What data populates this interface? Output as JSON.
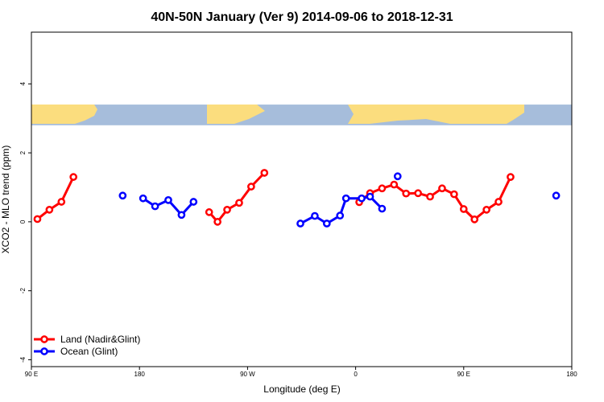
{
  "chart_data": {
    "type": "line",
    "title": "40N-50N January (Ver 9)   2014-09-06 to 2018-12-31",
    "xlabel": "Longitude (deg E)",
    "ylabel": "XCO2 - MLO trend (ppm)",
    "xlim": [
      90,
      540
    ],
    "ylim": [
      -4.2,
      5.5
    ],
    "x_ticks": [
      {
        "value": 90,
        "label": "90 E"
      },
      {
        "value": 180,
        "label": "180"
      },
      {
        "value": 270,
        "label": "90 W"
      },
      {
        "value": 360,
        "label": "0"
      },
      {
        "value": 450,
        "label": "90 E"
      },
      {
        "value": 540,
        "label": "180"
      }
    ],
    "y_ticks": [
      {
        "value": -4,
        "label": "-4"
      },
      {
        "value": -2,
        "label": "-2"
      },
      {
        "value": 0,
        "label": "0"
      },
      {
        "value": 2,
        "label": "2"
      },
      {
        "value": 4,
        "label": "4"
      }
    ],
    "map_band": {
      "ymin": 2.8,
      "ymax": 3.4,
      "ocean_color": "#A6BDDB",
      "land_color": "#FBDD7E"
    },
    "series": [
      {
        "name": "Land (Nadir&Glint)",
        "color": "#FF0000",
        "segments": [
          [
            [
              95,
              0.08
            ],
            [
              105,
              0.35
            ],
            [
              115,
              0.58
            ],
            [
              125,
              1.3
            ]
          ],
          [
            [
              238,
              0.28
            ],
            [
              245,
              0.0
            ],
            [
              253,
              0.35
            ],
            [
              263,
              0.55
            ],
            [
              273,
              1.02
            ],
            [
              284,
              1.42
            ]
          ],
          [
            [
              363,
              0.57
            ],
            [
              372,
              0.83
            ],
            [
              382,
              0.97
            ],
            [
              392,
              1.08
            ],
            [
              402,
              0.82
            ],
            [
              412,
              0.83
            ],
            [
              422,
              0.73
            ],
            [
              432,
              0.97
            ],
            [
              442,
              0.8
            ],
            [
              450,
              0.37
            ],
            [
              459,
              0.07
            ],
            [
              469,
              0.35
            ],
            [
              479,
              0.58
            ],
            [
              489,
              1.3
            ]
          ]
        ]
      },
      {
        "name": "Ocean (Glint)",
        "color": "#0000FF",
        "segments": [
          [
            [
              166,
              0.76
            ]
          ],
          [
            [
              183,
              0.68
            ],
            [
              193,
              0.45
            ],
            [
              204,
              0.63
            ],
            [
              215,
              0.2
            ],
            [
              225,
              0.58
            ]
          ],
          [
            [
              314,
              -0.05
            ],
            [
              326,
              0.17
            ],
            [
              336,
              -0.05
            ],
            [
              347,
              0.18
            ],
            [
              352,
              0.68
            ],
            [
              365,
              0.68
            ],
            [
              372,
              0.73
            ],
            [
              382,
              0.38
            ]
          ],
          [
            [
              395,
              1.32
            ]
          ],
          [
            [
              527,
              0.76
            ]
          ]
        ]
      }
    ],
    "legend": {
      "position": "bottom-left",
      "entries": [
        "Land (Nadir&Glint)",
        "Ocean (Glint)"
      ]
    }
  }
}
